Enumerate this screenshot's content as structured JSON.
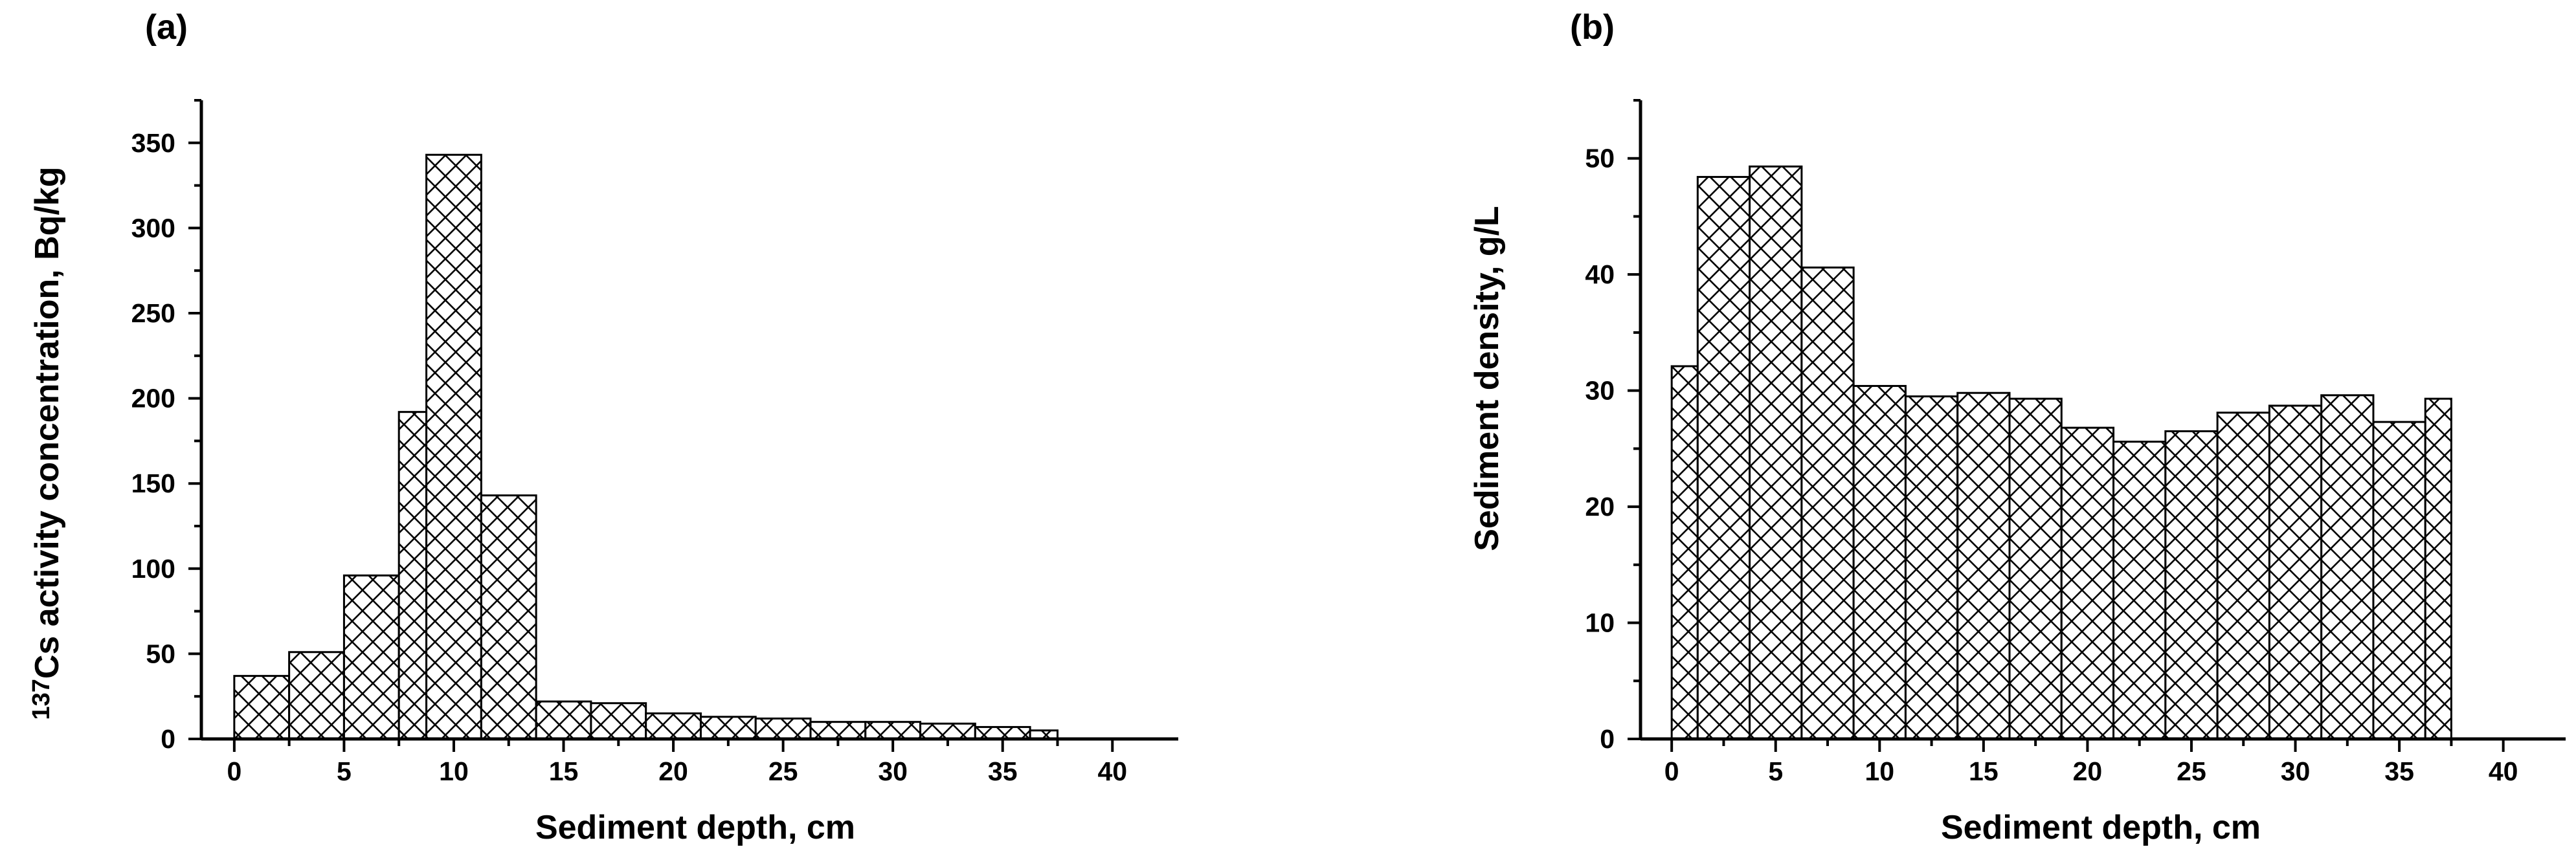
{
  "chart_data": [
    {
      "type": "bar",
      "panel_label": "(a)",
      "xlabel": "Sediment depth, cm",
      "ylabel_sup": "137",
      "ylabel": "Cs activity concentration, Bq/kg",
      "xlim": [
        -1.5,
        43
      ],
      "ylim": [
        0,
        375
      ],
      "xticks": [
        0,
        5,
        10,
        15,
        20,
        25,
        30,
        35,
        40
      ],
      "yticks": [
        0,
        50,
        100,
        150,
        200,
        250,
        300,
        350
      ],
      "fill": "crosshatch",
      "bins": [
        {
          "x0": 0.0,
          "x1": 2.5,
          "value": 37
        },
        {
          "x0": 2.5,
          "x1": 5.0,
          "value": 51
        },
        {
          "x0": 5.0,
          "x1": 7.5,
          "value": 96
        },
        {
          "x0": 7.5,
          "x1": 8.75,
          "value": 192
        },
        {
          "x0": 8.75,
          "x1": 11.25,
          "value": 343
        },
        {
          "x0": 11.25,
          "x1": 13.75,
          "value": 143
        },
        {
          "x0": 13.75,
          "x1": 16.25,
          "value": 22
        },
        {
          "x0": 16.25,
          "x1": 18.75,
          "value": 21
        },
        {
          "x0": 18.75,
          "x1": 21.25,
          "value": 15
        },
        {
          "x0": 21.25,
          "x1": 23.75,
          "value": 13
        },
        {
          "x0": 23.75,
          "x1": 26.25,
          "value": 12
        },
        {
          "x0": 26.25,
          "x1": 28.75,
          "value": 10
        },
        {
          "x0": 28.75,
          "x1": 31.25,
          "value": 10
        },
        {
          "x0": 31.25,
          "x1": 33.75,
          "value": 9
        },
        {
          "x0": 33.75,
          "x1": 36.25,
          "value": 7
        },
        {
          "x0": 36.25,
          "x1": 37.5,
          "value": 5
        }
      ]
    },
    {
      "type": "bar",
      "panel_label": "(b)",
      "xlabel": "Sediment depth, cm",
      "ylabel_sup": "",
      "ylabel": "Sediment density, g/L",
      "xlim": [
        -1.5,
        43
      ],
      "ylim": [
        0,
        55
      ],
      "xticks": [
        0,
        5,
        10,
        15,
        20,
        25,
        30,
        35,
        40
      ],
      "yticks": [
        0,
        10,
        20,
        30,
        40,
        50
      ],
      "fill": "crosshatch",
      "bins": [
        {
          "x0": 0.0,
          "x1": 1.25,
          "value": 32.1
        },
        {
          "x0": 1.25,
          "x1": 3.75,
          "value": 48.4
        },
        {
          "x0": 3.75,
          "x1": 6.25,
          "value": 49.3
        },
        {
          "x0": 6.25,
          "x1": 8.75,
          "value": 40.6
        },
        {
          "x0": 8.75,
          "x1": 11.25,
          "value": 30.4
        },
        {
          "x0": 11.25,
          "x1": 13.75,
          "value": 29.5
        },
        {
          "x0": 13.75,
          "x1": 16.25,
          "value": 29.8
        },
        {
          "x0": 16.25,
          "x1": 18.75,
          "value": 29.3
        },
        {
          "x0": 18.75,
          "x1": 21.25,
          "value": 26.8
        },
        {
          "x0": 21.25,
          "x1": 23.75,
          "value": 25.6
        },
        {
          "x0": 23.75,
          "x1": 26.25,
          "value": 26.5
        },
        {
          "x0": 26.25,
          "x1": 28.75,
          "value": 28.1
        },
        {
          "x0": 28.75,
          "x1": 31.25,
          "value": 28.7
        },
        {
          "x0": 31.25,
          "x1": 33.75,
          "value": 29.6
        },
        {
          "x0": 33.75,
          "x1": 36.25,
          "value": 27.3
        },
        {
          "x0": 36.25,
          "x1": 37.5,
          "value": 29.3
        }
      ]
    }
  ]
}
